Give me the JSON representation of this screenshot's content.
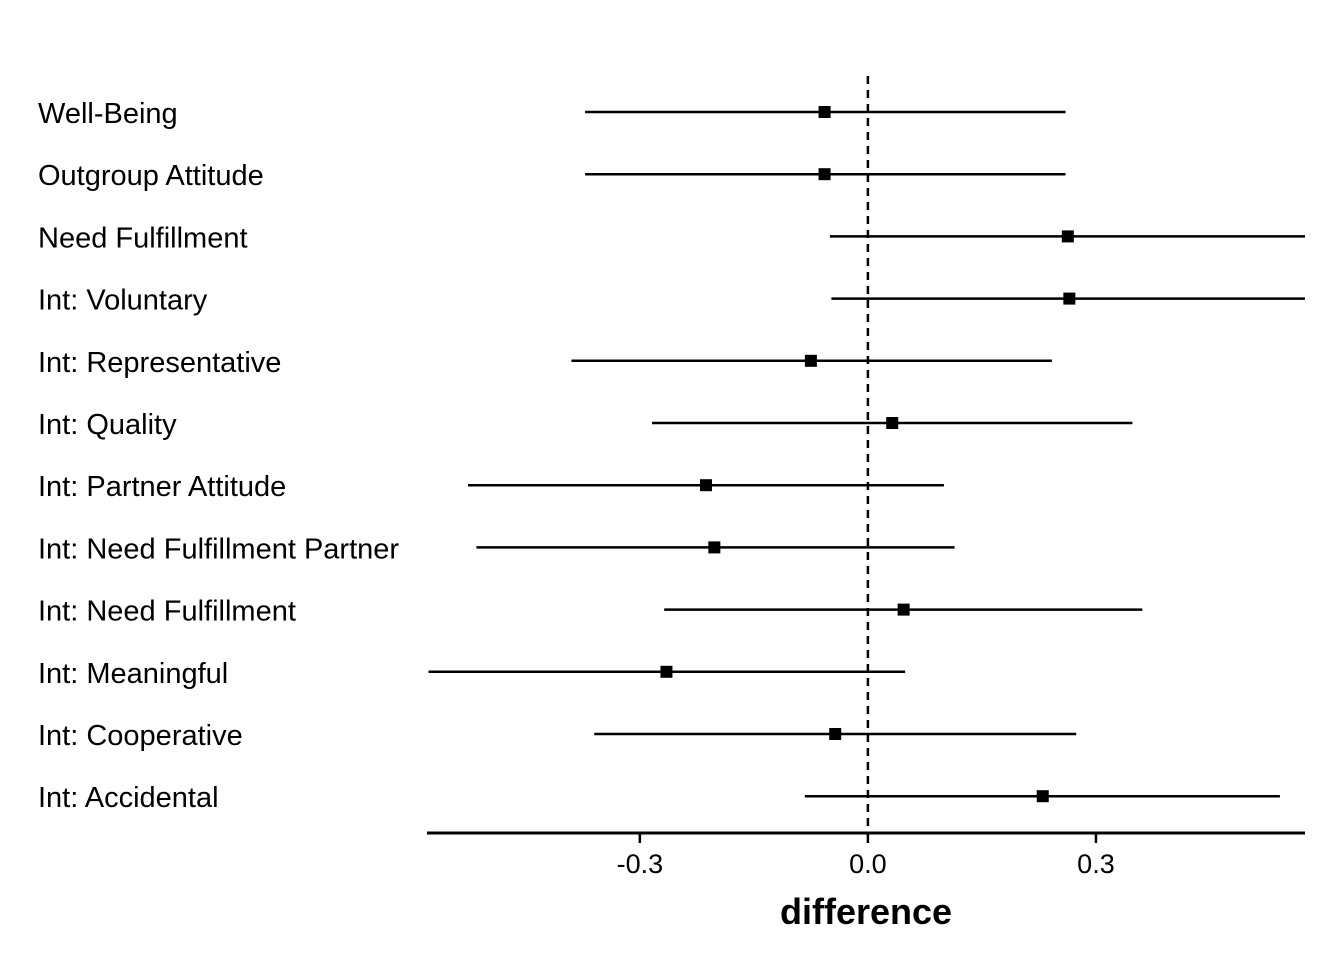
{
  "chart_data": {
    "type": "scatter",
    "subtype": "forest-plot",
    "title": "",
    "xlabel": "difference",
    "ylabel": "",
    "xlim": [
      -0.58,
      0.575
    ],
    "xticks": [
      -0.3,
      0.0,
      0.3
    ],
    "xtick_labels": [
      "-0.3",
      "0.0",
      "0.3"
    ],
    "reference_line": {
      "x": 0.0,
      "style": "dashed"
    },
    "grid": false,
    "legend": "none",
    "marker": "square",
    "color": "#000000",
    "categories": [
      "Well-Being",
      "Outgroup Attitude",
      "Need Fulfillment",
      "Int: Voluntary",
      "Int: Representative",
      "Int: Quality",
      "Int: Partner Attitude",
      "Int: Need Fulfillment Partner",
      "Int: Need Fulfillment",
      "Int: Meaningful",
      "Int: Cooperative",
      "Int: Accidental"
    ],
    "estimates": [
      -0.057,
      -0.057,
      0.263,
      0.265,
      -0.075,
      0.032,
      -0.213,
      -0.202,
      0.047,
      -0.265,
      -0.043,
      0.23
    ],
    "lower": [
      -0.372,
      -0.372,
      -0.05,
      -0.048,
      -0.39,
      -0.284,
      -0.526,
      -0.515,
      -0.268,
      -0.578,
      -0.36,
      -0.083
    ],
    "upper": [
      0.26,
      0.26,
      0.575,
      0.575,
      0.242,
      0.348,
      0.1,
      0.114,
      0.361,
      0.049,
      0.274,
      0.542
    ]
  }
}
